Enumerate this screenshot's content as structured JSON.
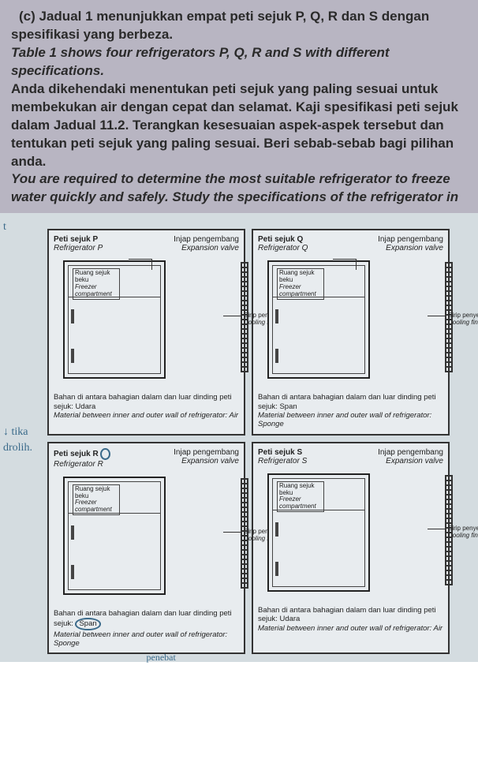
{
  "margin_notes": {
    "t": "t",
    "tika": "↓ tika",
    "drolih": "drolih."
  },
  "question": {
    "label": "(c)",
    "p1_ms": "Jadual 1 menunjukkan empat peti sejuk P, Q, R dan S dengan spesifikasi yang berbeza.",
    "p1_en": "Table 1 shows four refrigerators P, Q, R and S with different specifications.",
    "p2_ms": "Anda dikehendaki menentukan peti sejuk yang paling sesuai untuk membekukan air dengan cepat dan selamat.  Kaji spesifikasi peti sejuk dalam Jadual 11.2.  Terangkan kesesuaian aspek-aspek tersebut dan tentukan peti sejuk yang paling sesuai.  Beri sebab-sebab bagi pilihan anda.",
    "p2_en": "You are required to determine the most suitable refrigerator to freeze water quickly and safely. Study the specifications of the refrigerator in"
  },
  "labels": {
    "valve_ms": "Injap pengembang",
    "valve_en": "Expansion valve",
    "freezer_ms": "Ruang sejuk beku",
    "freezer_en": "Freezer compartment",
    "fin_ms": "Sirip penyejuk",
    "fin_en": "Cooling fin"
  },
  "material": {
    "air_ms": "Bahan di antara bahagian dalam dan luar dinding peti sejuk: Udara",
    "air_en": "Material between inner and outer wall of refrigerator: Air",
    "span_ms_prefix": "Bahan di antara bahagian dalam dan luar dinding peti sejuk: ",
    "span_word": "Span",
    "span_en": "Material between inner and outer wall of refrigerator: Sponge"
  },
  "fridges": {
    "P": {
      "title_ms": "Peti sejuk P",
      "title_en": "Refrigerator P"
    },
    "Q": {
      "title_ms": "Peti sejuk Q",
      "title_en": "Refrigerator Q"
    },
    "R": {
      "title_ms": "Peti sejuk R",
      "title_en": "Refrigerator R"
    },
    "S": {
      "title_ms": "Peti sejuk S",
      "title_en": "Refrigerator S"
    }
  },
  "handwritten": {
    "penebat": "penebat"
  },
  "colors": {
    "question_bg": "#b8b5c2",
    "diagram_bg": "#d4dce0",
    "cell_bg": "#e8ecef",
    "ink": "#333333",
    "handwriting": "#3a6a8a"
  }
}
